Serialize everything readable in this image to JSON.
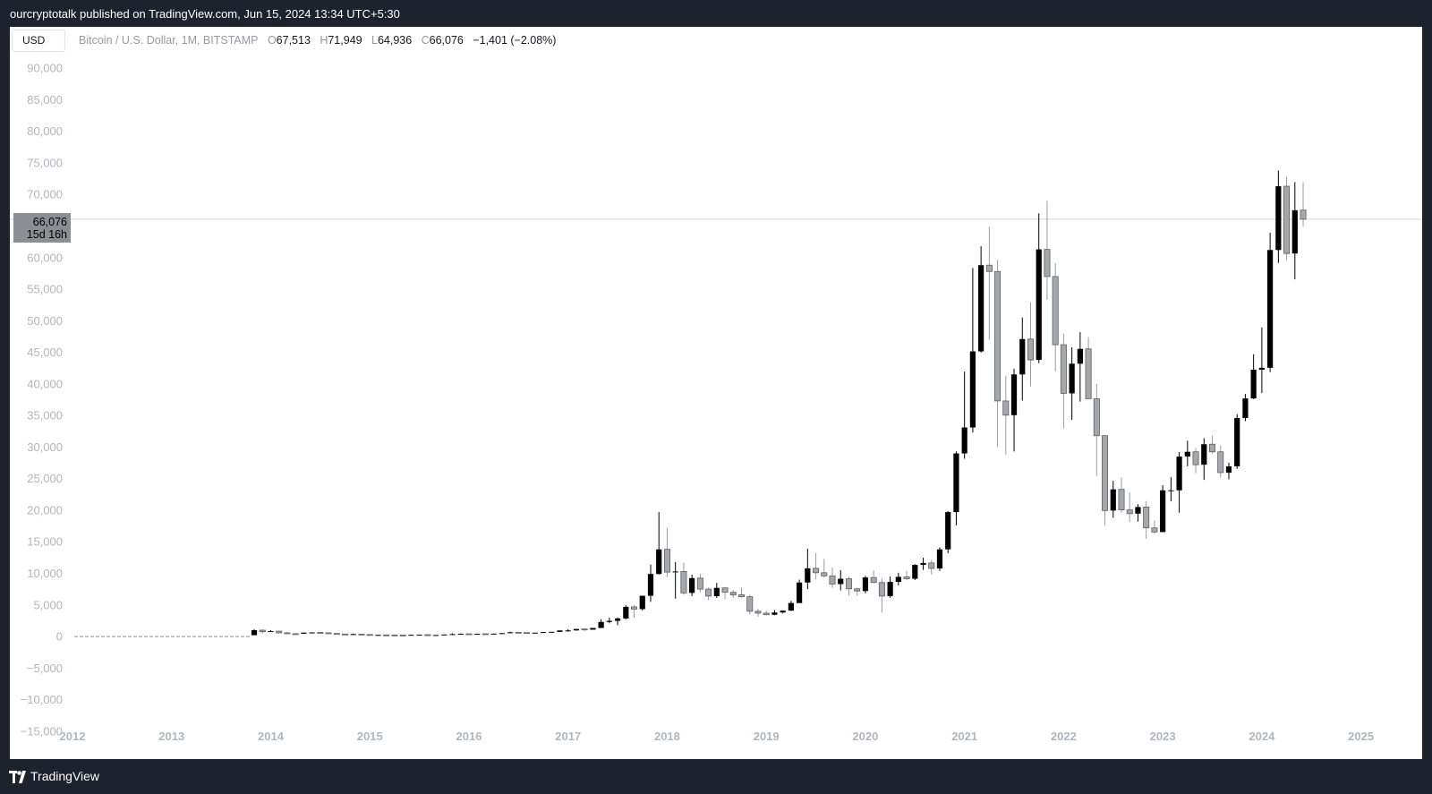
{
  "header": {
    "publisher_line": "ourcryptotalk published on TradingView.com, Jun 15, 2024 13:34 UTC+5:30"
  },
  "footer": {
    "brand": "TradingView"
  },
  "toolbar": {
    "currency_label": "USD"
  },
  "legend": {
    "symbol": "Bitcoin / U.S. Dollar, 1M, BITSTAMP",
    "open_key": "O",
    "open": "67,513",
    "high_key": "H",
    "high": "71,949",
    "low_key": "L",
    "low": "64,936",
    "close_key": "C",
    "close": "66,076",
    "change": "−1,401 (−2.08%)"
  },
  "price_label": {
    "price": "66,076",
    "timer": "15d 16h"
  },
  "colors": {
    "frame": "#1e222d",
    "panel": "#ffffff",
    "up_candle": "#000000",
    "down_candle": "#a6a7ab",
    "axis_text": "#b2b5be",
    "price_line": "#d1d4dc",
    "price_label_bg": "#8c8e94"
  },
  "chart_data": {
    "type": "candlestick",
    "interval": "1M",
    "y_axis_position": "left",
    "grid": false,
    "ylim": [
      -17000,
      92000
    ],
    "yticks": [
      90000,
      85000,
      80000,
      75000,
      70000,
      65000,
      60000,
      55000,
      50000,
      45000,
      40000,
      35000,
      30000,
      25000,
      20000,
      15000,
      10000,
      5000,
      0,
      -5000,
      -10000,
      -15000
    ],
    "ytick_labels": [
      "90,000",
      "85,000",
      "80,000",
      "75,000",
      "70,000",
      "",
      "60,000",
      "55,000",
      "50,000",
      "45,000",
      "40,000",
      "35,000",
      "30,000",
      "25,000",
      "20,000",
      "15,000",
      "10,000",
      "5,000",
      "0",
      "−5,000",
      "−10,000",
      "−15,000"
    ],
    "xlim": [
      "2012-01",
      "2025-07"
    ],
    "xticks": [
      "2012-01",
      "2013-01",
      "2014-01",
      "2015-01",
      "2016-01",
      "2017-01",
      "2018-01",
      "2019-01",
      "2020-01",
      "2021-01",
      "2022-01",
      "2023-01",
      "2024-01",
      "2025-01"
    ],
    "xtick_labels": [
      "2012",
      "2013",
      "2014",
      "2015",
      "2016",
      "2017",
      "2018",
      "2019",
      "2020",
      "2021",
      "2022",
      "2023",
      "2024",
      "2025"
    ],
    "last_price": 66076,
    "series": [
      {
        "name": "BTCUSD",
        "candles": [
          [
            "2013-11",
            206,
            1160,
            206,
            1000
          ],
          [
            "2013-12",
            1000,
            1160,
            450,
            760
          ],
          [
            "2014-01",
            760,
            1000,
            740,
            850
          ],
          [
            "2014-02",
            850,
            875,
            410,
            580
          ],
          [
            "2014-03",
            580,
            720,
            440,
            450
          ],
          [
            "2014-04",
            450,
            550,
            340,
            440
          ],
          [
            "2014-05",
            440,
            630,
            430,
            620
          ],
          [
            "2014-06",
            620,
            680,
            540,
            640
          ],
          [
            "2014-07",
            640,
            660,
            570,
            580
          ],
          [
            "2014-08",
            580,
            600,
            440,
            480
          ],
          [
            "2014-09",
            480,
            510,
            350,
            390
          ],
          [
            "2014-10",
            390,
            420,
            280,
            340
          ],
          [
            "2014-11",
            340,
            460,
            310,
            380
          ],
          [
            "2014-12",
            380,
            380,
            300,
            320
          ],
          [
            "2015-01",
            320,
            320,
            150,
            220
          ],
          [
            "2015-02",
            220,
            275,
            210,
            255
          ],
          [
            "2015-03",
            255,
            300,
            240,
            245
          ],
          [
            "2015-04",
            245,
            260,
            210,
            235
          ],
          [
            "2015-05",
            235,
            245,
            225,
            230
          ],
          [
            "2015-06",
            230,
            270,
            220,
            265
          ],
          [
            "2015-07",
            265,
            320,
            260,
            285
          ],
          [
            "2015-08",
            285,
            285,
            190,
            230
          ],
          [
            "2015-09",
            230,
            245,
            225,
            236
          ],
          [
            "2015-10",
            236,
            330,
            235,
            315
          ],
          [
            "2015-11",
            315,
            500,
            300,
            378
          ],
          [
            "2015-12",
            378,
            470,
            350,
            430
          ],
          [
            "2016-01",
            430,
            460,
            350,
            370
          ],
          [
            "2016-02",
            370,
            445,
            365,
            436
          ],
          [
            "2016-03",
            436,
            440,
            400,
            415
          ],
          [
            "2016-04",
            415,
            465,
            415,
            450
          ],
          [
            "2016-05",
            450,
            550,
            440,
            530
          ],
          [
            "2016-06",
            530,
            780,
            530,
            670
          ],
          [
            "2016-07",
            670,
            680,
            600,
            620
          ],
          [
            "2016-08",
            620,
            625,
            540,
            575
          ],
          [
            "2016-09",
            575,
            620,
            590,
            608
          ],
          [
            "2016-10",
            608,
            720,
            605,
            700
          ],
          [
            "2016-11",
            700,
            760,
            690,
            740
          ],
          [
            "2016-12",
            740,
            975,
            740,
            960
          ],
          [
            "2017-01",
            960,
            1150,
            750,
            965
          ],
          [
            "2017-02",
            965,
            1200,
            920,
            1190
          ],
          [
            "2017-03",
            1190,
            1300,
            890,
            1080
          ],
          [
            "2017-04",
            1080,
            1350,
            1080,
            1350
          ],
          [
            "2017-05",
            1350,
            2750,
            1350,
            2300
          ],
          [
            "2017-06",
            2300,
            3000,
            2100,
            2480
          ],
          [
            "2017-07",
            2480,
            2990,
            1800,
            2860
          ],
          [
            "2017-08",
            2860,
            4950,
            2700,
            4700
          ],
          [
            "2017-09",
            4700,
            5000,
            2970,
            4340
          ],
          [
            "2017-10",
            4340,
            6450,
            4100,
            6450
          ],
          [
            "2017-11",
            6450,
            11400,
            5500,
            9900
          ],
          [
            "2017-12",
            9900,
            19700,
            9800,
            13800
          ],
          [
            "2018-01",
            13800,
            17200,
            9400,
            10200
          ],
          [
            "2018-02",
            10200,
            11800,
            6000,
            10300
          ],
          [
            "2018-03",
            10300,
            11700,
            6600,
            6900
          ],
          [
            "2018-04",
            6900,
            9800,
            6400,
            9250
          ],
          [
            "2018-05",
            9250,
            9950,
            7000,
            7500
          ],
          [
            "2018-06",
            7500,
            7750,
            5750,
            6400
          ],
          [
            "2018-07",
            6400,
            8500,
            6100,
            7700
          ],
          [
            "2018-08",
            7700,
            7750,
            5880,
            7000
          ],
          [
            "2018-09",
            7000,
            7400,
            6100,
            6600
          ],
          [
            "2018-10",
            6600,
            7700,
            6200,
            6300
          ],
          [
            "2018-11",
            6300,
            6600,
            3500,
            4000
          ],
          [
            "2018-12",
            4000,
            4400,
            3120,
            3700
          ],
          [
            "2019-01",
            3700,
            4100,
            3350,
            3450
          ],
          [
            "2019-02",
            3450,
            4200,
            3380,
            3800
          ],
          [
            "2019-03",
            3800,
            4150,
            3650,
            4100
          ],
          [
            "2019-04",
            4100,
            5650,
            4050,
            5300
          ],
          [
            "2019-05",
            5300,
            9000,
            5300,
            8550
          ],
          [
            "2019-06",
            8550,
            13900,
            7500,
            10800
          ],
          [
            "2019-07",
            10800,
            13200,
            9050,
            10100
          ],
          [
            "2019-08",
            10100,
            12300,
            9350,
            9600
          ],
          [
            "2019-09",
            9600,
            10950,
            7700,
            8300
          ],
          [
            "2019-10",
            8300,
            10500,
            7300,
            9150
          ],
          [
            "2019-11",
            9150,
            9500,
            6500,
            7550
          ],
          [
            "2019-12",
            7550,
            7700,
            6450,
            7200
          ],
          [
            "2020-01",
            7200,
            9600,
            6850,
            9350
          ],
          [
            "2020-02",
            9350,
            10500,
            8400,
            8550
          ],
          [
            "2020-03",
            8550,
            9200,
            3800,
            6400
          ],
          [
            "2020-04",
            6400,
            9500,
            6150,
            8650
          ],
          [
            "2020-05",
            8650,
            10100,
            8100,
            9450
          ],
          [
            "2020-06",
            9450,
            10400,
            8900,
            9150
          ],
          [
            "2020-07",
            9150,
            11450,
            8950,
            11350
          ],
          [
            "2020-08",
            11350,
            12480,
            10550,
            11650
          ],
          [
            "2020-09",
            11650,
            12100,
            9850,
            10780
          ],
          [
            "2020-10",
            10780,
            14100,
            10400,
            13800
          ],
          [
            "2020-11",
            13800,
            19850,
            13200,
            19700
          ],
          [
            "2020-12",
            19700,
            29300,
            17600,
            28990
          ],
          [
            "2021-01",
            28990,
            41950,
            28150,
            33100
          ],
          [
            "2021-02",
            33100,
            58350,
            32300,
            45150
          ],
          [
            "2021-03",
            45150,
            61800,
            44950,
            58800
          ],
          [
            "2021-04",
            58800,
            64900,
            47000,
            57800
          ],
          [
            "2021-05",
            57800,
            59600,
            30000,
            37300
          ],
          [
            "2021-06",
            37300,
            41300,
            28800,
            35050
          ],
          [
            "2021-07",
            35050,
            42400,
            29300,
            41500
          ],
          [
            "2021-08",
            41500,
            50500,
            37350,
            47100
          ],
          [
            "2021-09",
            47100,
            52900,
            39600,
            43800
          ],
          [
            "2021-10",
            43800,
            67000,
            43300,
            61300
          ],
          [
            "2021-11",
            61300,
            69000,
            53300,
            57000
          ],
          [
            "2021-12",
            57000,
            59100,
            42000,
            46200
          ],
          [
            "2022-01",
            46200,
            47950,
            32950,
            38500
          ],
          [
            "2022-02",
            38500,
            45800,
            34300,
            43200
          ],
          [
            "2022-03",
            43200,
            48200,
            37200,
            45550
          ],
          [
            "2022-04",
            45550,
            47400,
            37600,
            37650
          ],
          [
            "2022-05",
            37650,
            40000,
            25400,
            31800
          ],
          [
            "2022-06",
            31800,
            31900,
            17600,
            19950
          ],
          [
            "2022-07",
            19950,
            24650,
            18800,
            23300
          ],
          [
            "2022-08",
            23300,
            25200,
            19600,
            20050
          ],
          [
            "2022-09",
            20050,
            22800,
            18150,
            19450
          ],
          [
            "2022-10",
            19450,
            20950,
            18200,
            20500
          ],
          [
            "2022-11",
            20500,
            21450,
            15500,
            17200
          ],
          [
            "2022-12",
            17200,
            18400,
            16300,
            16550
          ],
          [
            "2023-01",
            16550,
            23950,
            16500,
            23150
          ],
          [
            "2023-02",
            23150,
            25250,
            21400,
            23150
          ],
          [
            "2023-03",
            23150,
            29200,
            19600,
            28500
          ],
          [
            "2023-04",
            28500,
            31000,
            26950,
            29250
          ],
          [
            "2023-05",
            29250,
            29850,
            25850,
            27200
          ],
          [
            "2023-06",
            27200,
            31400,
            24800,
            30450
          ],
          [
            "2023-07",
            30450,
            31800,
            28900,
            29250
          ],
          [
            "2023-08",
            29250,
            30250,
            25200,
            25950
          ],
          [
            "2023-09",
            25950,
            27500,
            24900,
            26950
          ],
          [
            "2023-10",
            26950,
            35200,
            26550,
            34600
          ],
          [
            "2023-11",
            34600,
            38400,
            34100,
            37700
          ],
          [
            "2023-12",
            37700,
            44700,
            37600,
            42250
          ],
          [
            "2024-01",
            42250,
            48950,
            38550,
            42550
          ],
          [
            "2024-02",
            42550,
            63950,
            41850,
            61200
          ],
          [
            "2024-03",
            61200,
            73800,
            59150,
            71300
          ],
          [
            "2024-04",
            71300,
            72800,
            59600,
            60650
          ],
          [
            "2024-05",
            60650,
            71950,
            56550,
            67500
          ],
          [
            "2024-06",
            67513,
            71949,
            64936,
            66076
          ]
        ]
      }
    ]
  }
}
